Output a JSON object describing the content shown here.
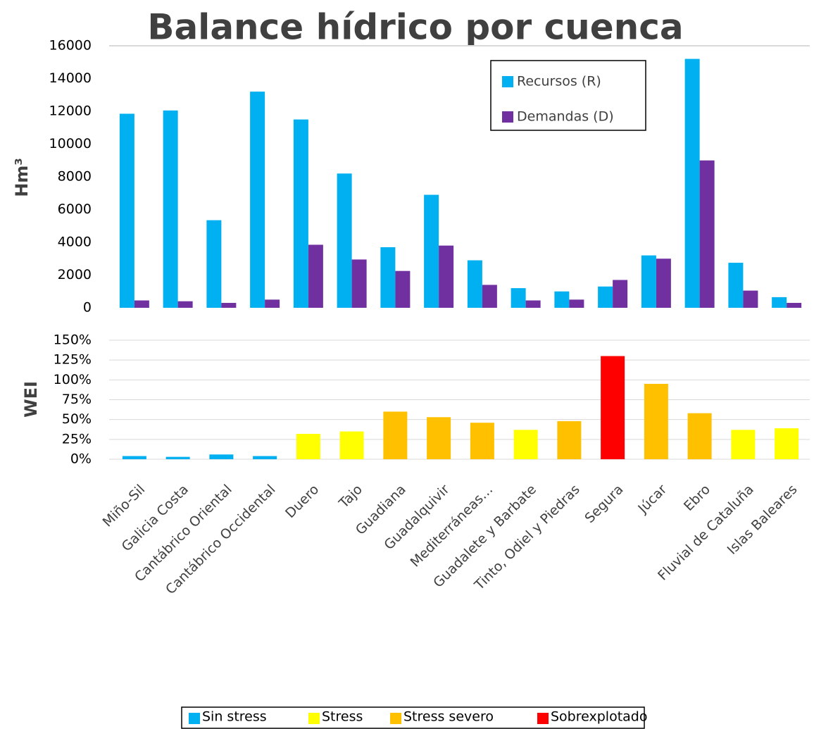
{
  "chart_data": [
    {
      "type": "bar",
      "title": "Balance hídrico por cuenca",
      "ylabel": "Hm³",
      "series": [
        {
          "name": "Recursos  (R)",
          "color": "#00b0f0",
          "values": [
            11850,
            12050,
            5350,
            13200,
            11500,
            8200,
            3700,
            6900,
            2900,
            1200,
            1000,
            1300,
            3200,
            15200,
            2750,
            650
          ]
        },
        {
          "name": "Demandas  (D)",
          "color": "#7030a0",
          "values": [
            450,
            400,
            300,
            500,
            3850,
            2950,
            2250,
            3800,
            1400,
            450,
            500,
            1700,
            3000,
            9000,
            1050,
            300
          ]
        }
      ],
      "ylim": [
        0,
        16000
      ],
      "yticks": [
        0,
        2000,
        4000,
        6000,
        8000,
        10000,
        12000,
        14000,
        16000
      ],
      "grid": false,
      "legend": "upper right"
    },
    {
      "type": "bar",
      "ylabel": "WEI",
      "categories": [
        "Miño-Sil",
        "Galicia Costa",
        "Cantábrico Oriental",
        "Cantábrico Occidental",
        "Duero",
        "Tajo",
        "Guadiana",
        "Guadalquivir",
        "Mediterráneas…",
        "Guadalete y Barbate",
        "Tinto, Odiel y Piedras",
        "Segura",
        "Júcar",
        "Ebro",
        "Fluvial de Cataluña",
        "Islas Baleares"
      ],
      "values": [
        4,
        3,
        6,
        4,
        32,
        35,
        60,
        53,
        46,
        37,
        48,
        130,
        95,
        58,
        37,
        39
      ],
      "colors": [
        "#00b0f0",
        "#00b0f0",
        "#00b0f0",
        "#00b0f0",
        "#ffff00",
        "#ffff00",
        "#ffc000",
        "#ffc000",
        "#ffc000",
        "#ffff00",
        "#ffc000",
        "#ff0000",
        "#ffc000",
        "#ffc000",
        "#ffff00",
        "#ffff00"
      ],
      "ylim": [
        0,
        150
      ],
      "yticks": [
        {
          "value": 0,
          "label": "0%"
        },
        {
          "value": 25,
          "label": "25%"
        },
        {
          "value": 50,
          "label": "50%"
        },
        {
          "value": 75,
          "label": "75%"
        },
        {
          "value": 100,
          "label": "100%"
        },
        {
          "value": 125,
          "label": "125%"
        },
        {
          "value": 150,
          "label": "150%"
        }
      ],
      "grid": true,
      "legend_items": [
        {
          "name": "Sin stress",
          "color": "#00b0f0"
        },
        {
          "name": "Stress",
          "color": "#ffff00"
        },
        {
          "name": "Stress  severo",
          "color": "#ffc000"
        },
        {
          "name": "Sobrexplotado",
          "color": "#ff0000"
        }
      ]
    }
  ]
}
